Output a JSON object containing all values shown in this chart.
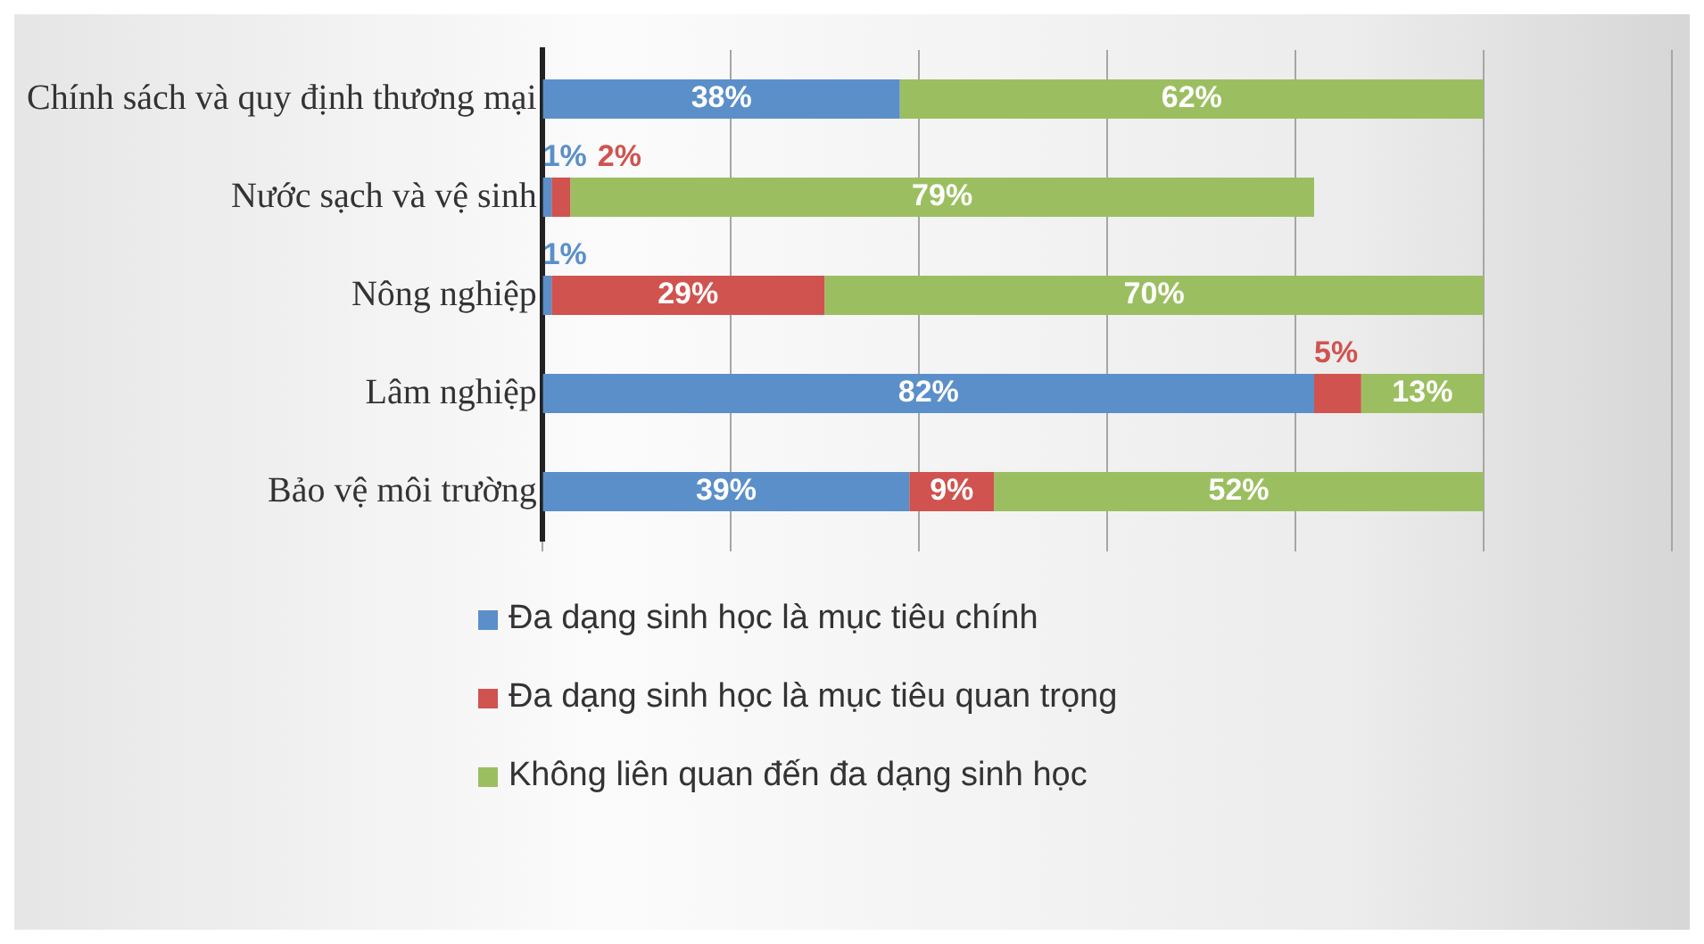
{
  "chart_data": {
    "type": "bar",
    "orientation": "horizontal",
    "stacked": true,
    "categories": [
      "Chính sách và quy định thương mại",
      "Nước sạch và vệ sinh",
      "Nông nghiệp",
      "Lâm nghiệp",
      "Bảo vệ môi trường"
    ],
    "series": [
      {
        "name": "Đa dạng sinh học là mục tiêu chính",
        "color": "#5b8fc9",
        "values": [
          38,
          1,
          1,
          82,
          39
        ],
        "value_labels": [
          "38%",
          "1%",
          "1%",
          "82%",
          "39%"
        ]
      },
      {
        "name": "Đa dạng sinh học là mục tiêu quan trọng",
        "color": "#d0534f",
        "values": [
          0,
          2,
          29,
          5,
          9
        ],
        "value_labels": [
          null,
          "2%",
          "29%",
          "5%",
          "9%"
        ]
      },
      {
        "name": "Không liên quan đến đa dạng sinh học",
        "color": "#9bbf60",
        "values": [
          62,
          79,
          70,
          13,
          52
        ],
        "value_labels": [
          "62%",
          "79%",
          "70%",
          "13%",
          "52%"
        ]
      }
    ],
    "xlim": [
      0,
      120
    ],
    "xticks": [
      {
        "value": 0,
        "label": null
      },
      {
        "value": 20,
        "label": null
      },
      {
        "value": 40,
        "label": null
      },
      {
        "value": 60,
        "label": null
      },
      {
        "value": 80,
        "label": null
      },
      {
        "value": 100,
        "label": null
      },
      {
        "value": 120,
        "label": null
      }
    ],
    "grid": "x",
    "legend": "bottom",
    "tick_labels": "y"
  }
}
